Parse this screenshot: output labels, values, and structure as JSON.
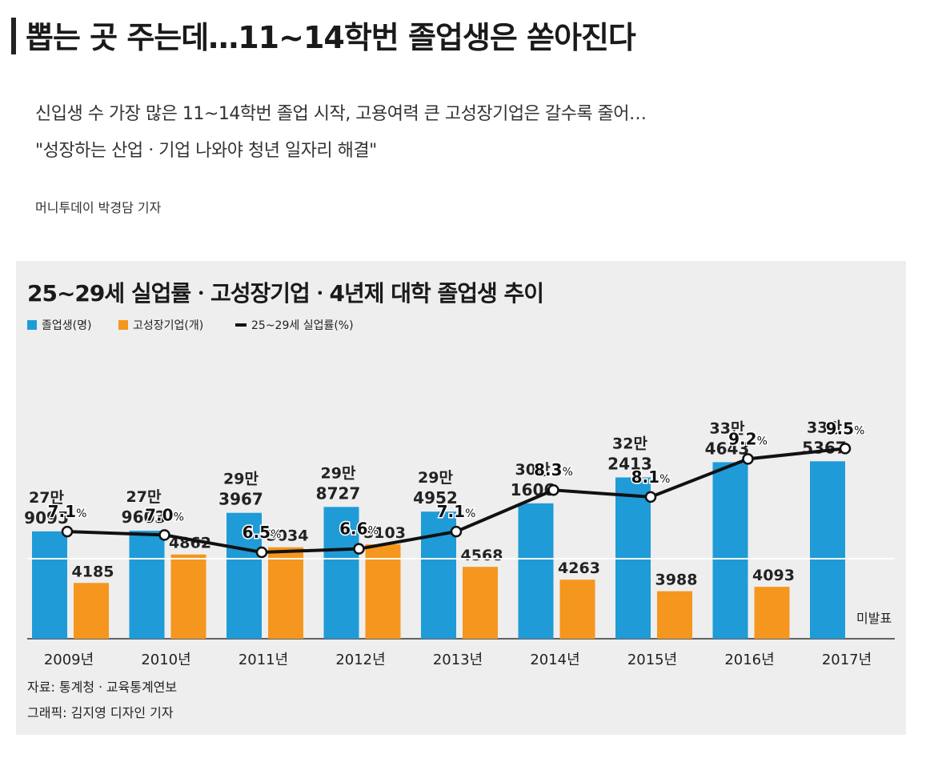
{
  "article": {
    "headline": "뽑는 곳 주는데…11~14학번 졸업생은 쏟아진다",
    "subtitle_line1": "신입생 수 가장 많은 11~14학번 졸업 시작, 고용여력 큰 고성장기업은 갈수록 줄어…",
    "subtitle_line2": "\"성장하는 산업ㆍ기업 나와야 청년 일자리 해결\"",
    "byline": "머니투데이 박경담 기자"
  },
  "colors": {
    "graduates": "#1f9bd7",
    "high_growth": "#f5961e",
    "unemployment": "#111111",
    "panel_bg": "#eeeeee"
  },
  "chart_data": {
    "type": "bar",
    "title": "25~29세 실업률ㆍ고성장기업ㆍ4년제 대학 졸업생 추이",
    "categories": [
      "2009년",
      "2010년",
      "2011년",
      "2012년",
      "2013년",
      "2014년",
      "2015년",
      "2016년",
      "2017년"
    ],
    "series": [
      {
        "name": "졸업생(명)",
        "type": "bar",
        "values": [
          279095,
          279603,
          293967,
          298727,
          294952,
          301606,
          322413,
          334643,
          335367
        ],
        "labels_top": [
          "27만",
          "27만",
          "29만",
          "29만",
          "29만",
          "30만",
          "32만",
          "33만",
          "33만"
        ],
        "labels_bottom": [
          "9095",
          "9603",
          "3967",
          "8727",
          "4952",
          "1606",
          "2413",
          "4643",
          "5367"
        ]
      },
      {
        "name": "고성장기업(개)",
        "type": "bar",
        "values": [
          4185,
          4862,
          5034,
          5103,
          4568,
          4263,
          3988,
          4093,
          null
        ],
        "labels": [
          "4185",
          "4862",
          "5034",
          "5103",
          "4568",
          "4263",
          "3988",
          "4093",
          "미발표"
        ]
      },
      {
        "name": "25~29세 실업률(%)",
        "type": "line",
        "values": [
          7.1,
          7.0,
          6.5,
          6.6,
          7.1,
          8.3,
          8.1,
          9.2,
          9.5
        ],
        "labels": [
          "7.1",
          "7.0",
          "6.5",
          "6.6",
          "7.1",
          "8.3",
          "8.1",
          "9.2",
          "9.5"
        ],
        "unit": "%"
      }
    ],
    "legend_position": "top-left",
    "grid": false,
    "source": "자료: 통계청ㆍ교육통계연보",
    "credit": "그래픽: 김지영 디자인 기자"
  }
}
